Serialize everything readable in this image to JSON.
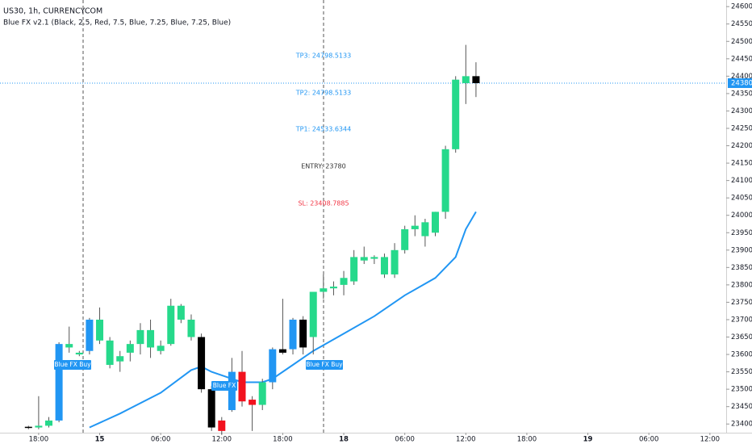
{
  "chart_data": {
    "type": "candlestick",
    "title": "US30, 1h, CURRENCYCOM",
    "subtitle": "Blue FX v2.1 (Black, 2.5, Red, 7.5, Blue, 7.25, Blue, 7.25, Blue)",
    "levels": [
      {
        "text": "TP3: 24798.5133",
        "color": "#2196f3"
      },
      {
        "text": "TP2: 24798.5133",
        "color": "#2196f3"
      },
      {
        "text": "TP1: 24533.6344",
        "color": "#2196f3"
      },
      {
        "text": "ENTRY: 23780",
        "color": "#333333"
      },
      {
        "text": "SL: 23408.7885",
        "color": "#f23645"
      }
    ],
    "signals": [
      "Blue FX Buy",
      "Blue FX",
      "Blue FX Buy"
    ],
    "x": [
      -1,
      0,
      1,
      2,
      3,
      4,
      5,
      6,
      7,
      8,
      9,
      10,
      11,
      12,
      13,
      14,
      15,
      16,
      17,
      18,
      19,
      20,
      21,
      22,
      23,
      24,
      25,
      26,
      27,
      28,
      29,
      30,
      31,
      32,
      33,
      34,
      35,
      36,
      37,
      38,
      39,
      40,
      41,
      42,
      43
    ],
    "open": [
      23392,
      23390,
      23395,
      23410,
      23620,
      23600,
      23610,
      23640,
      23570,
      23580,
      23605,
      23630,
      23620,
      23610,
      23630,
      23700,
      23650,
      23650,
      23500,
      23410,
      23440,
      23550,
      23470,
      23455,
      23520,
      23615,
      23615,
      23700,
      23650,
      23780,
      23790,
      23800,
      23810,
      23870,
      23875,
      23830,
      23830,
      23900,
      23960,
      23940,
      23950,
      24010,
      24190,
      24380,
      24400
    ],
    "high": [
      23395,
      23480,
      23420,
      23635,
      23680,
      23610,
      23705,
      23735,
      23650,
      23610,
      23640,
      23690,
      23700,
      23640,
      23760,
      23745,
      23715,
      23660,
      23510,
      23420,
      23590,
      23610,
      23480,
      23530,
      23620,
      23760,
      23705,
      23710,
      23780,
      23830,
      23810,
      23840,
      23900,
      23910,
      23885,
      23890,
      23920,
      23970,
      24000,
      23990,
      24010,
      24200,
      24400,
      24490,
      24440
    ],
    "low": [
      23385,
      23385,
      23390,
      23405,
      23605,
      23595,
      23600,
      23630,
      23560,
      23550,
      23580,
      23600,
      23590,
      23600,
      23625,
      23690,
      23640,
      23490,
      23380,
      23370,
      23435,
      23450,
      23380,
      23440,
      23500,
      23600,
      23600,
      23600,
      23600,
      23760,
      23770,
      23770,
      23800,
      23860,
      23860,
      23820,
      23820,
      23890,
      23940,
      23910,
      23940,
      23990,
      24180,
      24320,
      24340
    ],
    "close": [
      23390,
      23395,
      23410,
      23630,
      23630,
      23605,
      23700,
      23700,
      23640,
      23595,
      23630,
      23670,
      23670,
      23625,
      23740,
      23740,
      23700,
      23500,
      23390,
      23380,
      23550,
      23465,
      23455,
      23520,
      23615,
      23605,
      23700,
      23620,
      23780,
      23790,
      23795,
      23820,
      23880,
      23880,
      23880,
      23880,
      23900,
      23960,
      23970,
      23980,
      24010,
      24190,
      24390,
      24400,
      24380
    ],
    "colors": [
      "#000000",
      "#26d98b",
      "#26d98b",
      "#2196f3",
      "#26d98b",
      "#26d98b",
      "#2196f3",
      "#26d98b",
      "#26d98b",
      "#26d98b",
      "#26d98b",
      "#26d98b",
      "#26d98b",
      "#26d98b",
      "#26d98b",
      "#26d98b",
      "#26d98b",
      "#000000",
      "#000000",
      "#f2121e",
      "#2196f3",
      "#f2121e",
      "#f2121e",
      "#26d98b",
      "#2196f3",
      "#000000",
      "#2196f3",
      "#000000",
      "#26d98b",
      "#26d98b",
      "#26d98b",
      "#26d98b",
      "#26d98b",
      "#26d98b",
      "#26d98b",
      "#26d98b",
      "#26d98b",
      "#26d98b",
      "#26d98b",
      "#26d98b",
      "#26d98b",
      "#26d98b",
      "#26d98b",
      "#26d98b",
      "#000000"
    ],
    "ma": {
      "color": "#2196f3",
      "x": [
        5,
        8,
        12,
        15,
        16,
        17,
        19,
        20,
        22,
        23,
        25,
        27,
        30,
        33,
        36,
        39,
        41,
        42,
        43
      ],
      "values": [
        23390,
        23430,
        23490,
        23555,
        23565,
        23550,
        23530,
        23520,
        23520,
        23530,
        23570,
        23610,
        23660,
        23710,
        23770,
        23820,
        23880,
        23960,
        24010
      ]
    },
    "last_price": 24380,
    "last_price_color": "#2196f3",
    "xlim": [
      -3.8,
      67.6
    ],
    "xticks": [
      {
        "value": 0,
        "label": "18:00"
      },
      {
        "value": 6,
        "label": "15"
      },
      {
        "value": 12,
        "label": "06:00"
      },
      {
        "value": 18,
        "label": "12:00"
      },
      {
        "value": 24,
        "label": "18:00"
      },
      {
        "value": 30,
        "label": "18"
      },
      {
        "value": 36,
        "label": "06:00"
      },
      {
        "value": 42,
        "label": "12:00"
      },
      {
        "value": 48,
        "label": "18:00"
      },
      {
        "value": 54,
        "label": "19"
      },
      {
        "value": 60,
        "label": "06:00"
      },
      {
        "value": 66,
        "label": "12:00"
      }
    ],
    "ylim": [
      23375,
      24619
    ],
    "yticks": [
      23400,
      23450,
      23500,
      23550,
      23600,
      23650,
      23700,
      23750,
      23800,
      23850,
      23900,
      23950,
      24000,
      24050,
      24100,
      24150,
      24200,
      24250,
      24300,
      24350,
      24400,
      24450,
      24500,
      24550,
      24600
    ]
  }
}
